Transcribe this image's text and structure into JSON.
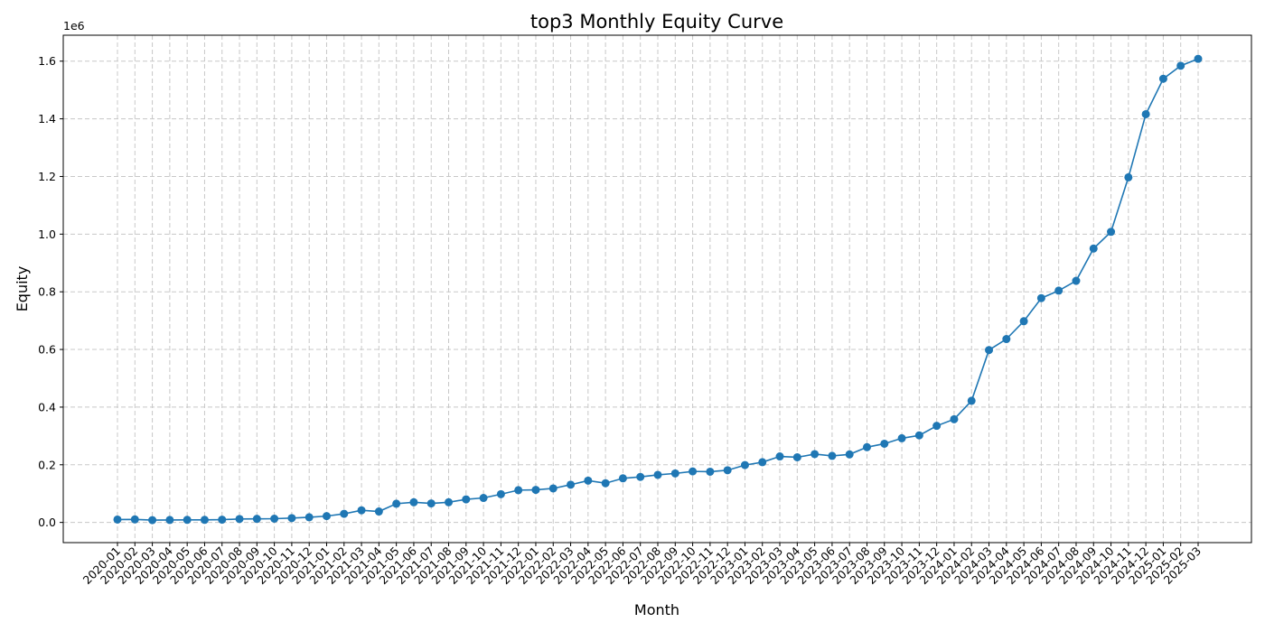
{
  "chart_data": {
    "type": "line",
    "title": "top3 Monthly Equity Curve",
    "xlabel": "Month",
    "ylabel": "Equity",
    "y_offset_label": "1e6",
    "grid": true,
    "ylim": [
      -70000,
      1690000
    ],
    "yticks": [
      0.0,
      0.2,
      0.4,
      0.6,
      0.8,
      1.0,
      1.2,
      1.4,
      1.6
    ],
    "ytick_labels": [
      "0.0",
      "0.2",
      "0.4",
      "0.6",
      "0.8",
      "1.0",
      "1.2",
      "1.4",
      "1.6"
    ],
    "color": "#1f77b4",
    "categories": [
      "2020-01",
      "2020-02",
      "2020-03",
      "2020-04",
      "2020-05",
      "2020-06",
      "2020-07",
      "2020-08",
      "2020-09",
      "2020-10",
      "2020-11",
      "2020-12",
      "2021-01",
      "2021-02",
      "2021-03",
      "2021-04",
      "2021-05",
      "2021-06",
      "2021-07",
      "2021-08",
      "2021-09",
      "2021-10",
      "2021-11",
      "2021-12",
      "2022-01",
      "2022-02",
      "2022-03",
      "2022-04",
      "2022-05",
      "2022-06",
      "2022-07",
      "2022-08",
      "2022-09",
      "2022-10",
      "2022-11",
      "2022-12",
      "2023-01",
      "2023-02",
      "2023-03",
      "2023-04",
      "2023-05",
      "2023-06",
      "2023-07",
      "2023-08",
      "2023-09",
      "2023-10",
      "2023-11",
      "2023-12",
      "2024-01",
      "2024-02",
      "2024-03",
      "2024-04",
      "2024-05",
      "2024-06",
      "2024-07",
      "2024-08",
      "2024-09",
      "2024-10",
      "2024-11",
      "2024-12",
      "2025-01",
      "2025-02",
      "2025-03"
    ],
    "values": [
      10000,
      10500,
      8000,
      8500,
      9000,
      9000,
      9500,
      12000,
      12500,
      13000,
      15000,
      18000,
      22000,
      30000,
      42000,
      38000,
      65000,
      70000,
      66000,
      70000,
      80000,
      85000,
      98000,
      112000,
      113000,
      118000,
      131000,
      145000,
      136000,
      153000,
      158000,
      165000,
      170000,
      177000,
      176000,
      181000,
      199000,
      209000,
      229000,
      226000,
      237000,
      231000,
      236000,
      261000,
      273000,
      292000,
      302000,
      335000,
      358000,
      422000,
      598000,
      636000,
      698000,
      778000,
      804000,
      838000,
      950000,
      1008000,
      1197000,
      1416000,
      1539000,
      1584000,
      1608000
    ]
  }
}
